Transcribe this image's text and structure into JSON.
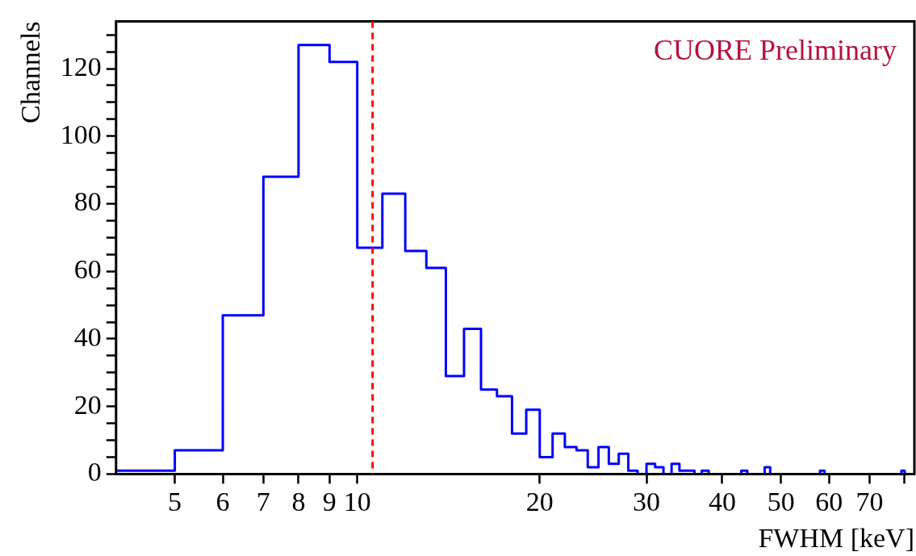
{
  "chart_data": {
    "type": "histogram",
    "xlabel": "FWHM [keV]",
    "ylabel": "Channels",
    "annotations": [
      "CUORE Preliminary"
    ],
    "bins": [
      4,
      5,
      6,
      7,
      8,
      9,
      10,
      11,
      12,
      13,
      14,
      15,
      16,
      17,
      18,
      19,
      20,
      21,
      22,
      23,
      24,
      25,
      26,
      27,
      28,
      29,
      30,
      31,
      32,
      33,
      34,
      35,
      36,
      37,
      38,
      39,
      40,
      41,
      42,
      43,
      44,
      45,
      46,
      47,
      48,
      49,
      50,
      51,
      52,
      53,
      54,
      55,
      56,
      57,
      58,
      59,
      60,
      61,
      62,
      63,
      64,
      65,
      66,
      67,
      68,
      69,
      70,
      71,
      72,
      73,
      74,
      75,
      76,
      77,
      78,
      79,
      80,
      81,
      82,
      83
    ],
    "values": [
      1,
      7,
      47,
      88,
      127,
      122,
      67,
      83,
      66,
      61,
      29,
      43,
      25,
      23,
      12,
      19,
      5,
      12,
      8,
      7,
      2,
      8,
      3,
      6,
      1,
      0,
      3,
      2,
      0,
      3,
      1,
      1,
      0,
      1,
      0,
      0,
      0,
      0,
      0,
      1,
      0,
      0,
      0,
      2,
      0,
      0,
      0,
      0,
      0,
      0,
      0,
      0,
      0,
      0,
      1,
      0,
      0,
      0,
      0,
      0,
      0,
      0,
      0,
      0,
      0,
      0,
      0,
      0,
      0,
      0,
      0,
      0,
      0,
      0,
      0,
      1,
      0,
      0,
      0
    ],
    "color": "#0000ff",
    "log": "x",
    "xlim": [
      4,
      83
    ],
    "ylim": [
      0,
      134
    ],
    "xticks": [
      5,
      6,
      7,
      8,
      9,
      10,
      20,
      30,
      40,
      50,
      60,
      70,
      {
        "value": 80,
        "label": null
      }
    ],
    "yticks": [
      0,
      {
        "value": 5,
        "label": null
      },
      {
        "value": 10,
        "label": null
      },
      {
        "value": 15,
        "label": null
      },
      20,
      {
        "value": 25,
        "label": null
      },
      {
        "value": 30,
        "label": null
      },
      {
        "value": 35,
        "label": null
      },
      40,
      {
        "value": 45,
        "label": null
      },
      {
        "value": 50,
        "label": null
      },
      {
        "value": 55,
        "label": null
      },
      60,
      {
        "value": 65,
        "label": null
      },
      {
        "value": 70,
        "label": null
      },
      {
        "value": 75,
        "label": null
      },
      80,
      {
        "value": 85,
        "label": null
      },
      {
        "value": 90,
        "label": null
      },
      {
        "value": 95,
        "label": null
      },
      100,
      {
        "value": 105,
        "label": null
      },
      {
        "value": 110,
        "label": null
      },
      {
        "value": 115,
        "label": null
      },
      120,
      {
        "value": 125,
        "label": null
      },
      {
        "value": 130,
        "label": null
      }
    ],
    "ref_lines": [
      {
        "axis": "x",
        "value": 10.6,
        "color": "#ff0000",
        "line_style": "dashed"
      }
    ],
    "grid": false,
    "legend": false
  }
}
